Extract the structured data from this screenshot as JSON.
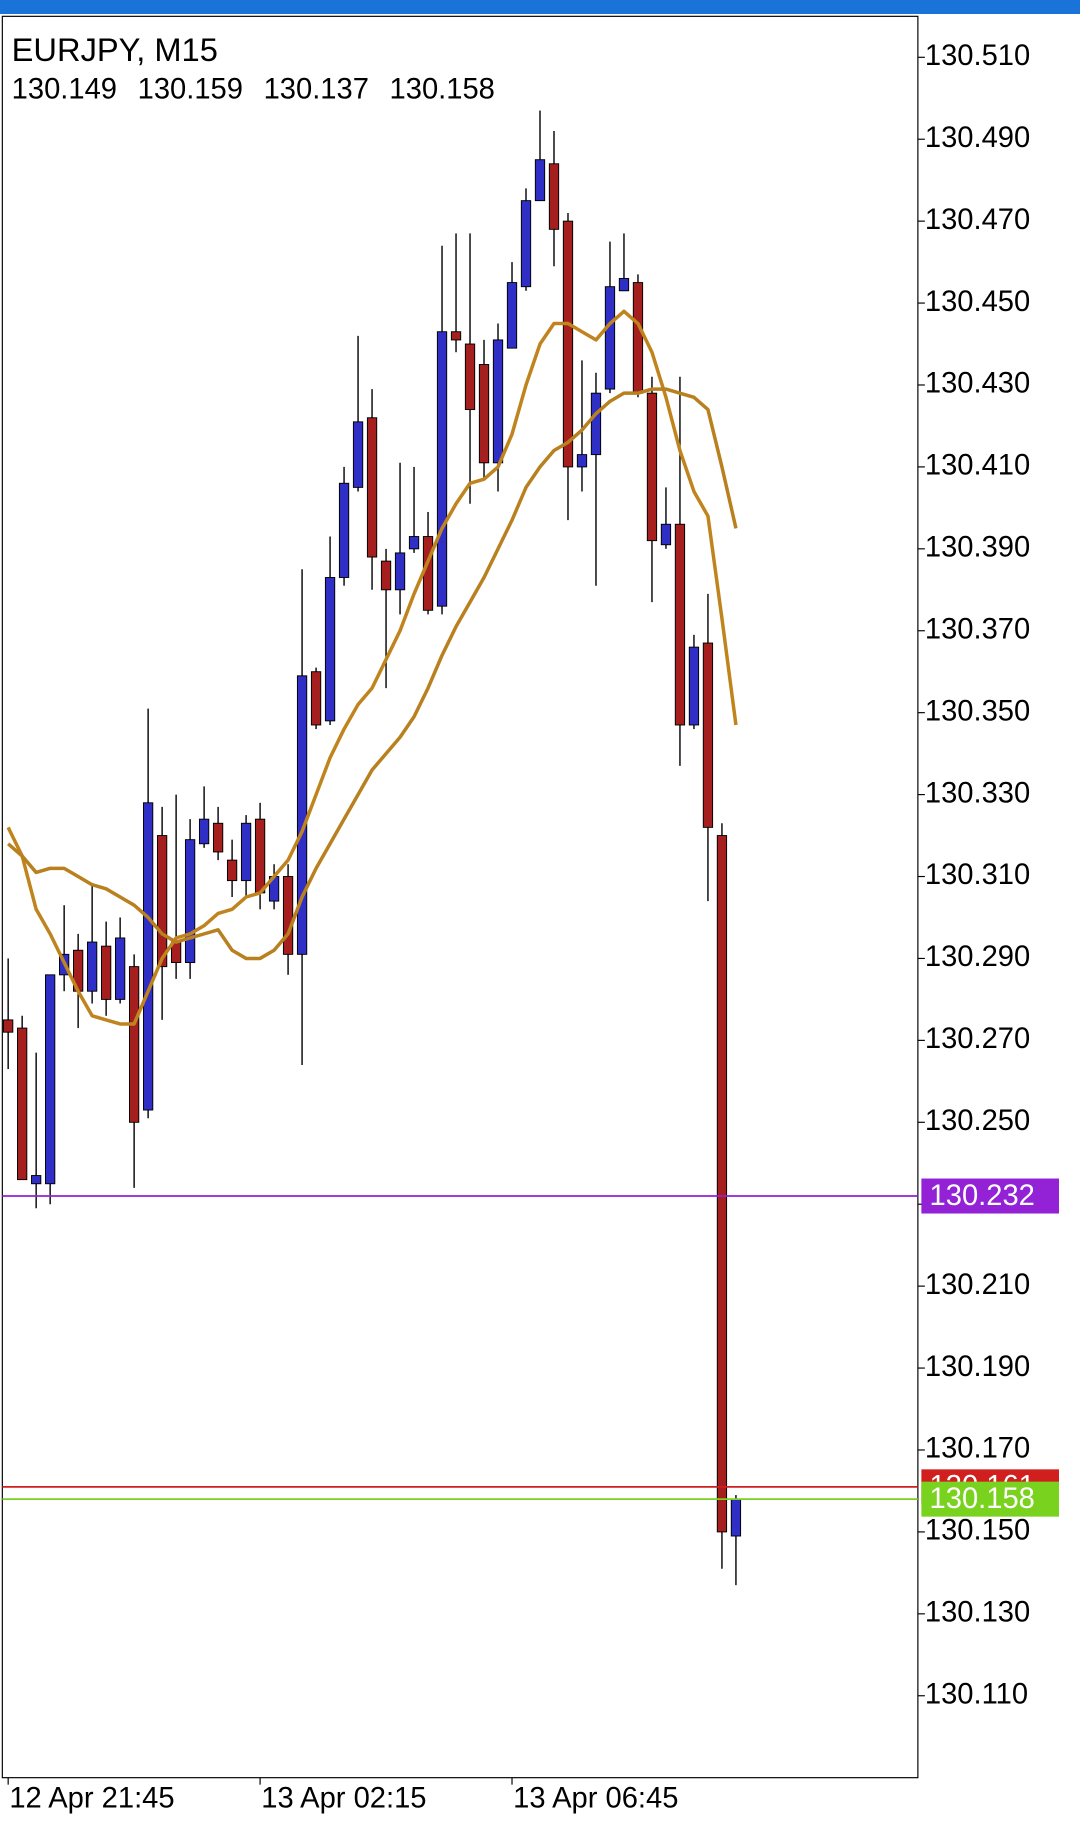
{
  "chart_data": {
    "type": "candlestick",
    "title": "EURJPY, M15",
    "categories": [
      "12 Apr 21:45",
      null,
      null,
      null,
      null,
      null,
      null,
      null,
      null,
      null,
      null,
      null,
      null,
      null,
      null,
      null,
      null,
      null,
      "13 Apr 02:15",
      null,
      null,
      null,
      null,
      null,
      null,
      null,
      null,
      null,
      null,
      null,
      null,
      null,
      null,
      null,
      null,
      null,
      "13 Apr 06:45",
      null,
      null,
      null,
      null,
      null,
      null,
      null,
      null,
      null,
      null,
      null,
      null,
      null,
      null,
      null,
      null
    ],
    "candles": {
      "open": [
        130.275,
        130.273,
        130.235,
        130.235,
        130.286,
        130.292,
        130.282,
        130.293,
        130.28,
        130.288,
        130.253,
        130.32,
        130.294,
        130.289,
        130.318,
        130.323,
        130.314,
        130.309,
        130.324,
        130.304,
        130.31,
        130.291,
        130.36,
        130.348,
        130.383,
        130.405,
        130.422,
        130.387,
        130.38,
        130.39,
        130.393,
        130.376,
        130.443,
        130.44,
        130.435,
        130.411,
        130.439,
        130.454,
        130.475,
        130.484,
        130.47,
        130.41,
        130.413,
        130.429,
        130.453,
        130.455,
        130.428,
        130.391,
        130.396,
        130.347,
        130.367,
        130.32,
        130.149
      ],
      "high": [
        130.29,
        130.276,
        130.267,
        130.286,
        130.303,
        130.296,
        130.308,
        130.299,
        130.3,
        130.291,
        130.351,
        130.327,
        130.33,
        130.324,
        130.332,
        130.327,
        130.319,
        130.325,
        130.328,
        130.313,
        130.313,
        130.385,
        130.361,
        130.393,
        130.41,
        130.442,
        130.429,
        130.39,
        130.411,
        130.41,
        130.399,
        130.464,
        130.467,
        130.467,
        130.441,
        130.445,
        130.46,
        130.478,
        130.497,
        130.492,
        130.472,
        130.436,
        130.433,
        130.465,
        130.467,
        130.457,
        130.432,
        130.405,
        130.432,
        130.369,
        130.379,
        130.323,
        130.159
      ],
      "low": [
        130.263,
        130.236,
        130.229,
        130.23,
        130.282,
        130.273,
        130.279,
        130.276,
        130.279,
        130.234,
        130.251,
        130.275,
        130.285,
        130.285,
        130.317,
        130.314,
        130.305,
        130.305,
        130.302,
        130.302,
        130.286,
        130.264,
        130.346,
        130.347,
        130.381,
        130.404,
        130.38,
        130.356,
        130.374,
        130.389,
        130.374,
        130.374,
        130.438,
        130.401,
        130.407,
        130.404,
        130.439,
        130.453,
        130.475,
        130.459,
        130.397,
        130.404,
        130.381,
        130.428,
        130.453,
        130.427,
        130.377,
        130.39,
        130.337,
        130.346,
        130.304,
        130.141,
        130.137
      ],
      "close": [
        130.272,
        130.236,
        130.237,
        130.286,
        130.291,
        130.282,
        130.294,
        130.28,
        130.295,
        130.25,
        130.328,
        130.288,
        130.289,
        130.319,
        130.324,
        130.316,
        130.309,
        130.323,
        130.306,
        130.31,
        130.291,
        130.359,
        130.347,
        130.383,
        130.406,
        130.421,
        130.388,
        130.38,
        130.389,
        130.393,
        130.375,
        130.443,
        130.441,
        130.424,
        130.411,
        130.441,
        130.455,
        130.475,
        130.485,
        130.468,
        130.41,
        130.413,
        130.428,
        130.454,
        130.456,
        130.428,
        130.392,
        130.396,
        130.347,
        130.366,
        130.322,
        130.15,
        130.158
      ]
    },
    "up_color": "#2f2fc6",
    "down_color": "#a51f1f",
    "wick_color": "#000000",
    "moving_averages": [
      {
        "color": "#c0841e",
        "values": [
          130.322,
          130.315,
          130.302,
          130.296,
          130.289,
          130.282,
          130.276,
          130.275,
          130.274,
          130.274,
          130.282,
          130.29,
          130.295,
          130.296,
          130.298,
          130.301,
          130.302,
          130.305,
          130.306,
          130.31,
          130.314,
          130.321,
          130.33,
          130.339,
          130.346,
          130.352,
          130.356,
          130.363,
          130.37,
          130.379,
          130.387,
          130.395,
          130.401,
          130.406,
          130.407,
          130.41,
          130.418,
          130.43,
          130.44,
          130.445,
          130.445,
          130.443,
          130.441,
          130.445,
          130.448,
          130.445,
          130.438,
          130.427,
          130.414,
          130.404,
          130.398,
          130.373,
          130.347
        ]
      },
      {
        "color": "#b8801f",
        "values": [
          130.318,
          130.315,
          130.311,
          130.312,
          130.312,
          130.31,
          130.308,
          130.307,
          130.305,
          130.303,
          130.3,
          130.296,
          130.294,
          130.295,
          130.296,
          130.297,
          130.292,
          130.29,
          130.29,
          130.292,
          130.296,
          130.305,
          130.312,
          130.318,
          130.324,
          130.33,
          130.336,
          130.34,
          130.344,
          130.349,
          130.356,
          130.364,
          130.371,
          130.377,
          130.383,
          130.39,
          130.397,
          130.405,
          130.41,
          130.414,
          130.416,
          130.419,
          130.423,
          130.426,
          130.428,
          130.428,
          130.429,
          130.429,
          130.428,
          130.427,
          130.424,
          130.41,
          130.395
        ]
      }
    ],
    "levels": [
      {
        "value": 130.232,
        "color": "#9321d6"
      },
      {
        "value": 130.161,
        "color": "#d11f1f"
      },
      {
        "value": 130.158,
        "color": "#78d21e"
      }
    ],
    "ylim": [
      130.09,
      130.52
    ],
    "yticks": [
      {
        "value": 130.11,
        "label": "130.110"
      },
      {
        "value": 130.13,
        "label": "130.130"
      },
      {
        "value": 130.15,
        "label": "130.150"
      },
      {
        "value": 130.17,
        "label": "130.170"
      },
      {
        "value": 130.19,
        "label": "130.190"
      },
      {
        "value": 130.21,
        "label": "130.210"
      },
      {
        "value": 130.23,
        "label": "130.230"
      },
      {
        "value": 130.25,
        "label": "130.250"
      },
      {
        "value": 130.27,
        "label": "130.270"
      },
      {
        "value": 130.29,
        "label": "130.290"
      },
      {
        "value": 130.31,
        "label": "130.310"
      },
      {
        "value": 130.33,
        "label": "130.330"
      },
      {
        "value": 130.35,
        "label": "130.350"
      },
      {
        "value": 130.37,
        "label": "130.370"
      },
      {
        "value": 130.39,
        "label": "130.390"
      },
      {
        "value": 130.41,
        "label": "130.410"
      },
      {
        "value": 130.43,
        "label": "130.430"
      },
      {
        "value": 130.45,
        "label": "130.450"
      },
      {
        "value": 130.47,
        "label": "130.470"
      },
      {
        "value": 130.49,
        "label": "130.490"
      },
      {
        "value": 130.51,
        "label": "130.510"
      }
    ],
    "grid": false
  }
}
